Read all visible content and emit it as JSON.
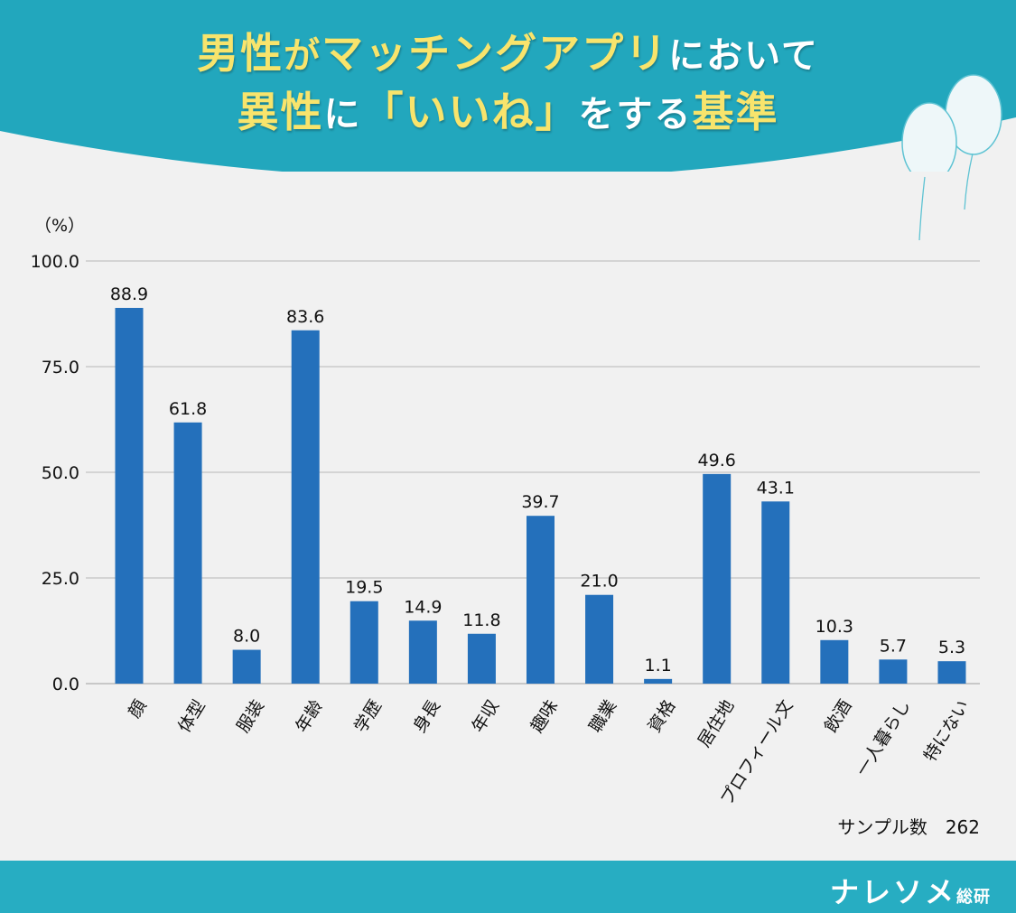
{
  "title": {
    "line1": [
      {
        "text": "男性",
        "color": "yellow"
      },
      {
        "text": "が",
        "color": "yellow-small"
      },
      {
        "text": "マッチングアプリ",
        "color": "yellow"
      },
      {
        "text": "において",
        "color": "white-small"
      }
    ],
    "line2": [
      {
        "text": "異性",
        "color": "yellow"
      },
      {
        "text": "に",
        "color": "white-small"
      },
      {
        "text": "「いいね」",
        "color": "yellow"
      },
      {
        "text": "をする",
        "color": "white-small"
      },
      {
        "text": "基準",
        "color": "yellow"
      }
    ]
  },
  "colors": {
    "header": "#22a7bd",
    "bar": "#2470bb",
    "background": "#f1f1f1",
    "title_accent": "#f8e46c"
  },
  "chart_data": {
    "type": "bar",
    "ylabel": "（%）",
    "ylim": [
      0,
      100
    ],
    "yticks": [
      "0.0",
      "25.0",
      "50.0",
      "75.0",
      "100.0"
    ],
    "grid": true,
    "categories": [
      "顔",
      "体型",
      "服装",
      "年齢",
      "学歴",
      "身長",
      "年収",
      "趣味",
      "職業",
      "資格",
      "居住地",
      "プロフィール文",
      "飲酒",
      "一人暮らし",
      "特にない"
    ],
    "values": [
      88.9,
      61.8,
      8.0,
      83.6,
      19.5,
      14.9,
      11.8,
      39.7,
      21.0,
      1.1,
      49.6,
      43.1,
      10.3,
      5.7,
      5.3
    ],
    "value_labels": [
      "88.9",
      "61.8",
      "8.0",
      "83.6",
      "19.5",
      "14.9",
      "11.8",
      "39.7",
      "21.0",
      "1.1",
      "49.6",
      "43.1",
      "10.3",
      "5.7",
      "5.3"
    ],
    "note": "サンプル数　262"
  },
  "footer": {
    "brand": "ナレソメ",
    "brand_suffix": "総研"
  }
}
